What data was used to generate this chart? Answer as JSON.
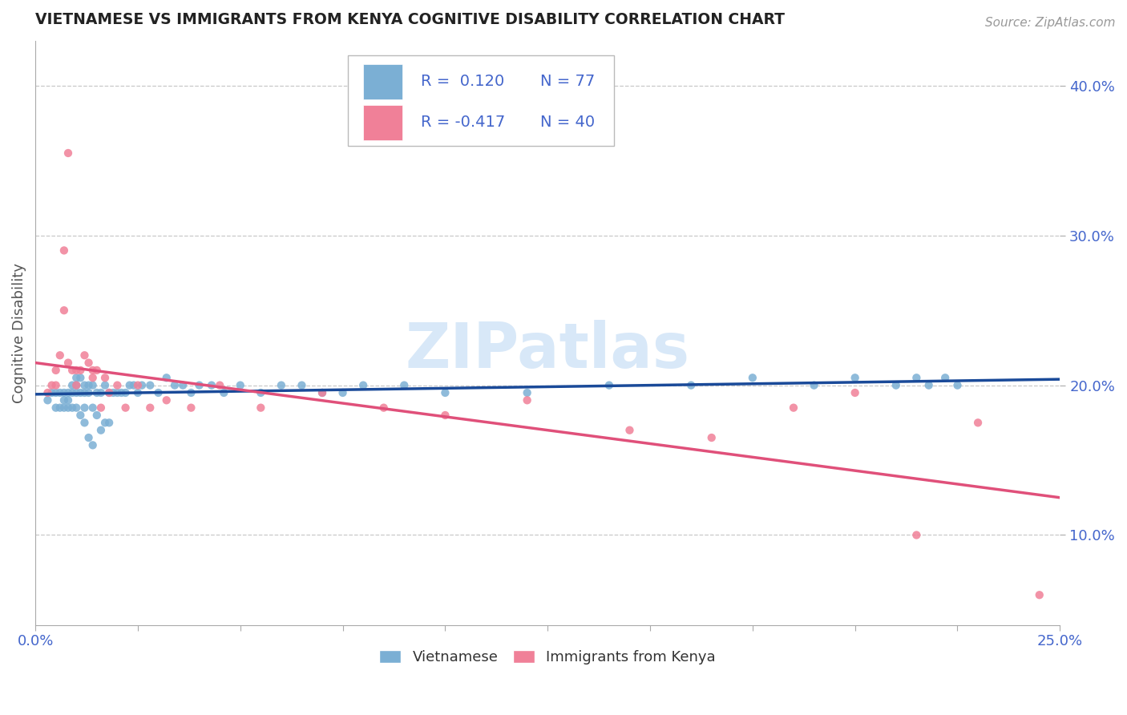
{
  "title": "VIETNAMESE VS IMMIGRANTS FROM KENYA COGNITIVE DISABILITY CORRELATION CHART",
  "source": "Source: ZipAtlas.com",
  "ylabel": "Cognitive Disability",
  "xlim": [
    0.0,
    0.25
  ],
  "ylim": [
    0.04,
    0.43
  ],
  "yticks": [
    0.1,
    0.2,
    0.3,
    0.4
  ],
  "ytick_labels": [
    "10.0%",
    "20.0%",
    "30.0%",
    "40.0%"
  ],
  "xticks": [
    0.0,
    0.025,
    0.05,
    0.075,
    0.1,
    0.125,
    0.15,
    0.175,
    0.2,
    0.225,
    0.25
  ],
  "xtick_labels": [
    "0.0%",
    "",
    "",
    "",
    "",
    "",
    "",
    "",
    "",
    "",
    "25.0%"
  ],
  "background_color": "#ffffff",
  "grid_color": "#c8c8c8",
  "title_color": "#222222",
  "tick_label_color": "#4466cc",
  "vietnamese_color": "#7bafd4",
  "kenya_color": "#f08098",
  "vietnamese_line_color": "#1a4a99",
  "kenya_line_color": "#e0507a",
  "watermark_text": "ZIPatlas",
  "watermark_color": "#d8e8f8",
  "R_viet": "0.120",
  "N_viet": "77",
  "R_kenya": "-0.417",
  "N_kenya": "40",
  "legend_label_viet": "Vietnamese",
  "legend_label_kenya": "Immigrants from Kenya",
  "viet_x": [
    0.003,
    0.004,
    0.005,
    0.005,
    0.006,
    0.006,
    0.007,
    0.007,
    0.007,
    0.008,
    0.008,
    0.008,
    0.009,
    0.009,
    0.009,
    0.01,
    0.01,
    0.01,
    0.01,
    0.011,
    0.011,
    0.011,
    0.012,
    0.012,
    0.012,
    0.012,
    0.013,
    0.013,
    0.013,
    0.014,
    0.014,
    0.014,
    0.015,
    0.015,
    0.016,
    0.016,
    0.017,
    0.017,
    0.018,
    0.018,
    0.019,
    0.02,
    0.021,
    0.022,
    0.023,
    0.024,
    0.025,
    0.026,
    0.028,
    0.03,
    0.032,
    0.034,
    0.036,
    0.038,
    0.04,
    0.043,
    0.046,
    0.05,
    0.055,
    0.06,
    0.065,
    0.07,
    0.075,
    0.08,
    0.09,
    0.1,
    0.12,
    0.14,
    0.16,
    0.175,
    0.19,
    0.2,
    0.21,
    0.215,
    0.218,
    0.222,
    0.225
  ],
  "viet_y": [
    0.19,
    0.195,
    0.185,
    0.195,
    0.195,
    0.185,
    0.195,
    0.19,
    0.185,
    0.195,
    0.19,
    0.185,
    0.2,
    0.195,
    0.185,
    0.205,
    0.2,
    0.195,
    0.185,
    0.205,
    0.195,
    0.18,
    0.2,
    0.195,
    0.185,
    0.175,
    0.2,
    0.195,
    0.165,
    0.2,
    0.185,
    0.16,
    0.195,
    0.18,
    0.195,
    0.17,
    0.2,
    0.175,
    0.195,
    0.175,
    0.195,
    0.195,
    0.195,
    0.195,
    0.2,
    0.2,
    0.195,
    0.2,
    0.2,
    0.195,
    0.205,
    0.2,
    0.2,
    0.195,
    0.2,
    0.2,
    0.195,
    0.2,
    0.195,
    0.2,
    0.2,
    0.195,
    0.195,
    0.2,
    0.2,
    0.195,
    0.195,
    0.2,
    0.2,
    0.205,
    0.2,
    0.205,
    0.2,
    0.205,
    0.2,
    0.205,
    0.2
  ],
  "kenya_x": [
    0.003,
    0.004,
    0.005,
    0.005,
    0.006,
    0.007,
    0.007,
    0.008,
    0.008,
    0.009,
    0.01,
    0.01,
    0.011,
    0.012,
    0.013,
    0.014,
    0.014,
    0.015,
    0.016,
    0.017,
    0.018,
    0.02,
    0.022,
    0.025,
    0.028,
    0.032,
    0.038,
    0.045,
    0.055,
    0.07,
    0.085,
    0.1,
    0.12,
    0.145,
    0.165,
    0.185,
    0.2,
    0.215,
    0.23,
    0.245
  ],
  "kenya_y": [
    0.195,
    0.2,
    0.21,
    0.2,
    0.22,
    0.25,
    0.29,
    0.215,
    0.355,
    0.21,
    0.21,
    0.2,
    0.21,
    0.22,
    0.215,
    0.205,
    0.21,
    0.21,
    0.185,
    0.205,
    0.195,
    0.2,
    0.185,
    0.2,
    0.185,
    0.19,
    0.185,
    0.2,
    0.185,
    0.195,
    0.185,
    0.18,
    0.19,
    0.17,
    0.165,
    0.185,
    0.195,
    0.1,
    0.175,
    0.06
  ]
}
